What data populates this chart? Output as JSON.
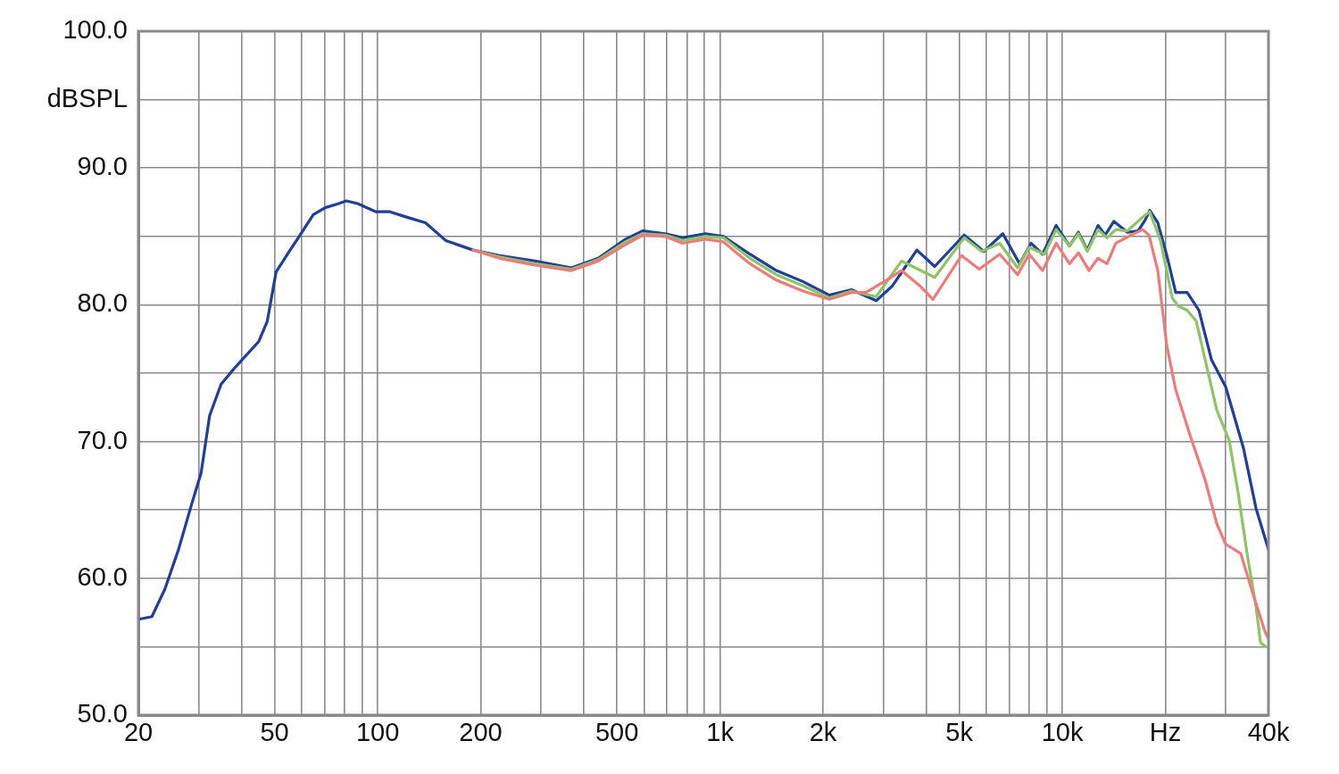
{
  "chart_data": {
    "type": "line",
    "log": "x",
    "grid": true,
    "legend": false,
    "marker": "none",
    "line_style": "solid",
    "xlim": [
      20,
      40000
    ],
    "xticks": [
      20,
      {
        "value": 30,
        "label": null
      },
      {
        "value": 40,
        "label": null
      },
      50,
      {
        "value": 60,
        "label": null
      },
      {
        "value": 70,
        "label": null
      },
      {
        "value": 80,
        "label": null
      },
      {
        "value": 90,
        "label": null
      },
      100,
      200,
      {
        "value": 300,
        "label": null
      },
      {
        "value": 400,
        "label": null
      },
      500,
      {
        "value": 600,
        "label": null
      },
      {
        "value": 700,
        "label": null
      },
      {
        "value": 800,
        "label": null
      },
      {
        "value": 900,
        "label": null
      },
      {
        "value": 1000,
        "label": "1k"
      },
      {
        "value": 2000,
        "label": "2k"
      },
      {
        "value": 3000,
        "label": null
      },
      {
        "value": 4000,
        "label": null
      },
      {
        "value": 5000,
        "label": "5k"
      },
      {
        "value": 6000,
        "label": null
      },
      {
        "value": 7000,
        "label": null
      },
      {
        "value": 8000,
        "label": null
      },
      {
        "value": 9000,
        "label": null
      },
      {
        "value": 10000,
        "label": "10k"
      },
      {
        "value": 20000,
        "label": "Hz"
      },
      {
        "value": 30000,
        "label": null
      },
      {
        "value": 40000,
        "label": "40k"
      }
    ],
    "ylim": [
      50,
      100
    ],
    "yticks": [
      {
        "value": 50,
        "label": "50.0"
      },
      {
        "value": 55,
        "label": null
      },
      {
        "value": 60,
        "label": "60.0"
      },
      {
        "value": 65,
        "label": null
      },
      {
        "value": 70,
        "label": "70.0"
      },
      {
        "value": 75,
        "label": null
      },
      {
        "value": 80,
        "label": "80.0"
      },
      {
        "value": 85,
        "label": null
      },
      {
        "value": 90,
        "label": "90.0"
      },
      {
        "value": 95,
        "label": "dBSPL"
      },
      {
        "value": 100,
        "label": "100.0"
      }
    ],
    "series": [
      {
        "color": "#ee7b7b",
        "x": [
          190,
          227,
          288,
          368,
          441,
          530,
          594,
          691,
          778,
          906,
          1023,
          1223,
          1461,
          1746,
          2085,
          2420,
          2668,
          3063,
          3390,
          3829,
          4188,
          5072,
          5716,
          6563,
          7402,
          8000,
          8753,
          9593,
          10490,
          11140,
          11970,
          12710,
          13500,
          14330,
          15890,
          17150,
          17910,
          19000,
          20190,
          21430,
          23580,
          26120,
          28250,
          29990,
          33210,
          35900,
          39070,
          40000
        ],
        "values": [
          84.0,
          83.4,
          82.9,
          82.5,
          83.2,
          84.4,
          85.1,
          85.0,
          84.5,
          84.8,
          84.6,
          83.0,
          81.8,
          81.0,
          80.4,
          80.9,
          80.9,
          81.8,
          82.5,
          81.4,
          80.4,
          83.6,
          82.6,
          83.7,
          82.2,
          83.7,
          82.5,
          84.5,
          83.0,
          83.8,
          82.5,
          83.4,
          83.0,
          84.5,
          85.1,
          85.5,
          85.1,
          82.5,
          77.0,
          73.8,
          70.5,
          67.2,
          64.0,
          62.5,
          61.8,
          59.0,
          56.1,
          55.6
        ]
      },
      {
        "color": "#8cc466",
        "x": [
          190,
          227,
          288,
          368,
          441,
          530,
          594,
          691,
          778,
          906,
          1023,
          1223,
          1461,
          1746,
          2085,
          2420,
          2860,
          3390,
          4237,
          5166,
          5821,
          6563,
          7402,
          8000,
          8867,
          9593,
          10490,
          11140,
          11830,
          12710,
          13500,
          14330,
          15490,
          17150,
          17990,
          19350,
          20940,
          21830,
          23150,
          24610,
          26120,
          28250,
          30710,
          32640,
          34640,
          36800,
          37920,
          39300
        ],
        "values": [
          84.0,
          83.5,
          83.0,
          82.6,
          83.3,
          84.6,
          85.2,
          85.1,
          84.7,
          85.0,
          84.9,
          83.4,
          82.2,
          81.4,
          80.5,
          81.0,
          80.6,
          83.2,
          82.0,
          84.9,
          83.9,
          84.5,
          82.7,
          84.2,
          83.7,
          85.5,
          84.3,
          85.2,
          83.9,
          85.5,
          84.9,
          85.5,
          85.4,
          86.4,
          86.8,
          84.7,
          80.5,
          79.9,
          79.6,
          78.8,
          76.0,
          72.3,
          70.1,
          66.2,
          61.8,
          57.9,
          55.3,
          55.0
        ]
      },
      {
        "color": "#1f3f99",
        "x": [
          20,
          21.9,
          23.9,
          26.2,
          28.6,
          30.5,
          32.3,
          34.9,
          38.6,
          44.9,
          47.6,
          50.5,
          55.5,
          59.0,
          64.9,
          70.3,
          77.0,
          81.0,
          87.3,
          98.9,
          108.6,
          121.9,
          137.9,
          158,
          190,
          227,
          288,
          368,
          441,
          530,
          594,
          691,
          778,
          906,
          1023,
          1223,
          1461,
          1746,
          2085,
          2420,
          2860,
          3193,
          3758,
          4237,
          5166,
          5900,
          6700,
          7500,
          8100,
          8753,
          9593,
          10490,
          11140,
          11830,
          12710,
          13340,
          14140,
          15490,
          16640,
          17460,
          17990,
          19000,
          20190,
          21430,
          23150,
          25060,
          27250,
          29990,
          33820,
          36800,
          40000
        ],
        "values": [
          57.0,
          57.2,
          59.2,
          62.1,
          65.4,
          67.7,
          71.9,
          74.2,
          75.5,
          77.3,
          78.8,
          82.4,
          84.0,
          85.0,
          86.6,
          87.1,
          87.4,
          87.6,
          87.4,
          86.8,
          86.8,
          86.4,
          86.0,
          84.7,
          84.0,
          83.6,
          83.2,
          82.7,
          83.4,
          84.8,
          85.4,
          85.2,
          84.9,
          85.2,
          85.0,
          83.7,
          82.5,
          81.7,
          80.7,
          81.1,
          80.3,
          81.4,
          84.0,
          82.8,
          85.1,
          83.9,
          85.2,
          83.0,
          84.5,
          83.7,
          85.8,
          84.3,
          85.3,
          84.0,
          85.8,
          85.1,
          86.1,
          85.3,
          85.4,
          86.2,
          86.9,
          86.0,
          83.6,
          80.9,
          80.9,
          79.6,
          76.0,
          74.0,
          69.5,
          65.1,
          62.1
        ]
      }
    ]
  }
}
